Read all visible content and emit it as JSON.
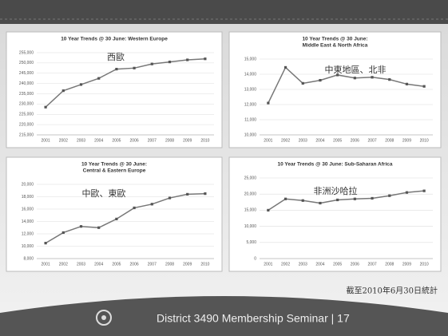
{
  "slide": {
    "note": "截至2010年6月30日統計",
    "footer": "District 3490 Membership Seminar | 17"
  },
  "chart_data": [
    {
      "type": "line",
      "title": [
        "10 Year Trends @ 30 June: Western Europe"
      ],
      "annotation": "西歐",
      "categories": [
        "2001",
        "2002",
        "2003",
        "2004",
        "2005",
        "2006",
        "2007",
        "2008",
        "2009",
        "2010"
      ],
      "values": [
        228500,
        236500,
        239500,
        242500,
        247000,
        247500,
        249500,
        250500,
        251500,
        252000
      ],
      "color": "#777777",
      "ylim": [
        215000,
        255000
      ],
      "yticks": [
        {
          "value": 215000,
          "label": "215,000"
        },
        {
          "value": 220000,
          "label": "220,000"
        },
        {
          "value": 225000,
          "label": "225,000"
        },
        {
          "value": 230000,
          "label": "230,000"
        },
        {
          "value": 235000,
          "label": "235,000"
        },
        {
          "value": 240000,
          "label": "240,000"
        },
        {
          "value": 245000,
          "label": "245,000"
        },
        {
          "value": 250000,
          "label": "250,000"
        },
        {
          "value": 255000,
          "label": "255,000"
        }
      ],
      "grid": true
    },
    {
      "type": "line",
      "title": [
        "10 Year Trends @ 30 June:",
        "Middle East & North Africa"
      ],
      "annotation": "中東地區、北非",
      "categories": [
        "2001",
        "2002",
        "2003",
        "2004",
        "2005",
        "2006",
        "2007",
        "2008",
        "2009",
        "2010"
      ],
      "values": [
        12100,
        14450,
        13400,
        13600,
        13950,
        13750,
        13800,
        13650,
        13350,
        13200
      ],
      "color": "#777777",
      "ylim": [
        10000,
        15000
      ],
      "yticks": [
        {
          "value": 10000,
          "label": "10,000"
        },
        {
          "value": 11000,
          "label": "11,000"
        },
        {
          "value": 12000,
          "label": "12,000"
        },
        {
          "value": 13000,
          "label": "13,000"
        },
        {
          "value": 14000,
          "label": "14,000"
        },
        {
          "value": 15000,
          "label": "15,000"
        }
      ],
      "grid": true
    },
    {
      "type": "line",
      "title": [
        "10 Year Trends @ 30 June:",
        "Central & Eastern Europe"
      ],
      "annotation": "中歐、東歐",
      "categories": [
        "2001",
        "2002",
        "2003",
        "2004",
        "2005",
        "2006",
        "2007",
        "2008",
        "2009",
        "2010"
      ],
      "values": [
        10500,
        12200,
        13200,
        13000,
        14400,
        16200,
        16800,
        17800,
        18400,
        18500
      ],
      "color": "#777777",
      "ylim": [
        8000,
        20000
      ],
      "yticks": [
        {
          "value": 8000,
          "label": "8,000"
        },
        {
          "value": 10000,
          "label": "10,000"
        },
        {
          "value": 12000,
          "label": "12,000"
        },
        {
          "value": 14000,
          "label": "14,000"
        },
        {
          "value": 16000,
          "label": "16,000"
        },
        {
          "value": 18000,
          "label": "18,000"
        },
        {
          "value": 20000,
          "label": "20,000"
        }
      ],
      "grid": true
    },
    {
      "type": "line",
      "title": [
        "10 Year Trends @ 30 June: Sub-Saharan Africa"
      ],
      "annotation": "非洲沙哈拉",
      "categories": [
        "2001",
        "2002",
        "2003",
        "2004",
        "2005",
        "2006",
        "2007",
        "2008",
        "2009",
        "2010"
      ],
      "values": [
        15000,
        18500,
        18000,
        17200,
        18200,
        18500,
        18700,
        19500,
        20500,
        21000
      ],
      "color": "#777777",
      "ylim": [
        0,
        25000
      ],
      "yticks": [
        0,
        {
          "value": 5000,
          "label": "5,000"
        },
        {
          "value": 10000,
          "label": "10,000"
        },
        {
          "value": 15000,
          "label": "15,000"
        },
        {
          "value": 20000,
          "label": "20,000"
        },
        {
          "value": 25000,
          "label": "25,000"
        }
      ],
      "grid": true
    }
  ]
}
